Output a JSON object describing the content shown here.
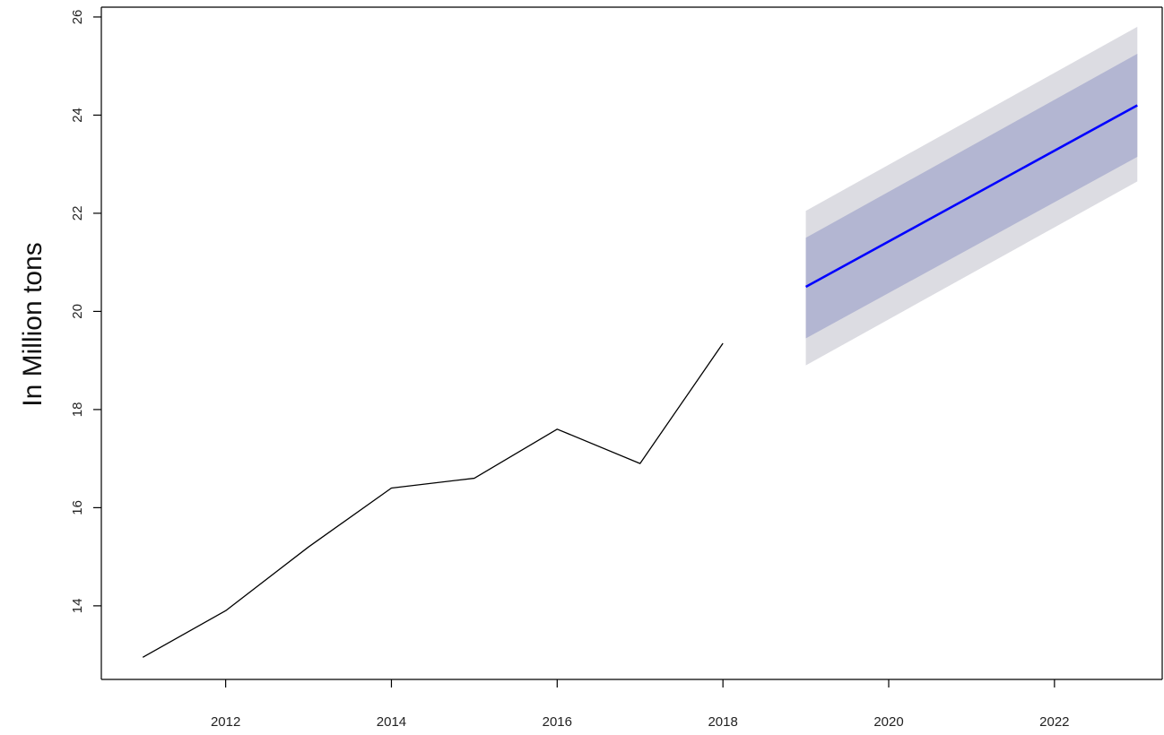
{
  "chart_data": {
    "type": "line",
    "title": "",
    "xlabel": "",
    "ylabel": "In Million tons",
    "xlim": [
      2010.5,
      2023.3
    ],
    "ylim": [
      12.5,
      26.2
    ],
    "x_ticks": [
      2012,
      2014,
      2016,
      2018,
      2020,
      2022
    ],
    "x_tick_labels": [
      "2012",
      "2014",
      "2016",
      "2018",
      "2020",
      "2022"
    ],
    "y_ticks": [
      14,
      16,
      18,
      20,
      22,
      24,
      26
    ],
    "y_tick_labels": [
      "14",
      "16",
      "18",
      "20",
      "22",
      "24",
      "26"
    ],
    "grid": false,
    "legend": "none",
    "series": [
      {
        "kind": "actual",
        "color": "#000000",
        "x": [
          2011,
          2012,
          2013,
          2014,
          2015,
          2016,
          2017,
          2018
        ],
        "y": [
          12.95,
          13.9,
          15.2,
          16.4,
          16.6,
          17.6,
          16.9,
          19.35
        ]
      },
      {
        "kind": "forecast",
        "color": "#0000ff",
        "x": [
          2019,
          2023
        ],
        "y": [
          20.5,
          24.2
        ]
      }
    ],
    "intervals": [
      {
        "level": "95",
        "color": "#dcdce2",
        "x": [
          2019,
          2023
        ],
        "lower": [
          18.9,
          22.65
        ],
        "upper": [
          22.05,
          25.8
        ]
      },
      {
        "level": "80",
        "color": "#b3b6d2",
        "x": [
          2019,
          2023
        ],
        "lower": [
          19.45,
          23.15
        ],
        "upper": [
          21.5,
          25.25
        ]
      }
    ]
  }
}
